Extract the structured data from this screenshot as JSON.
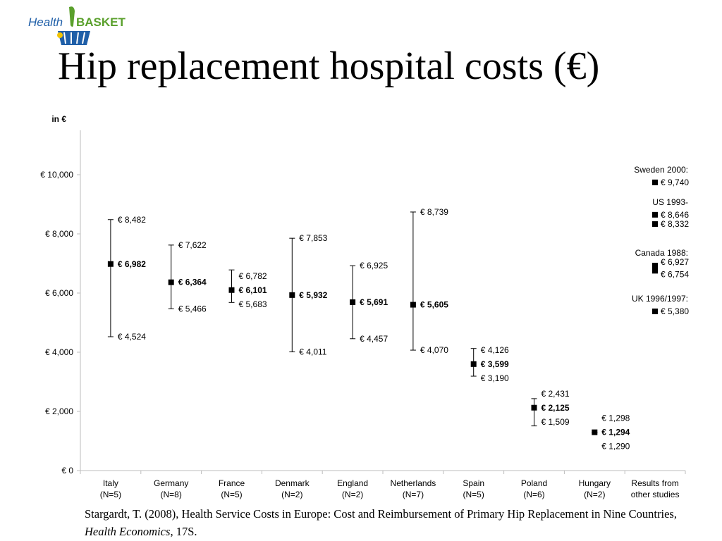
{
  "logo": {
    "text_left": "Health",
    "text_right": "BASKET",
    "colors": {
      "green": "#5aa02c",
      "blue": "#1f5fa8"
    }
  },
  "title": "Hip replacement hospital costs (€)",
  "citation": {
    "text_before": "Stargardt, T. (2008), Health Service Costs in Europe: Cost and Reimbursement of Primary Hip Replacement in Nine Countries, ",
    "journal": "Health Economics",
    "text_after": ", 17S."
  },
  "chart_data": {
    "type": "scatter",
    "ylabel": "in €",
    "ylim": [
      0,
      11500
    ],
    "y_ticks": [
      0,
      2000,
      4000,
      6000,
      8000,
      10000
    ],
    "y_tick_labels": [
      "€ 0",
      "€ 2,000",
      "€ 4,000",
      "€ 6,000",
      "€ 8,000",
      "€ 10,000"
    ],
    "grid": false,
    "categories": [
      {
        "name": "Italy",
        "n": "(N=5)",
        "mean": 6982,
        "max": 8482,
        "min": 4524,
        "mean_label": "€ 6,982",
        "max_label": "€ 8,482",
        "min_label": "€ 4,524"
      },
      {
        "name": "Germany",
        "n": "(N=8)",
        "mean": 6364,
        "max": 7622,
        "min": 5466,
        "mean_label": "€ 6,364",
        "max_label": "€ 7,622",
        "min_label": "€ 5,466"
      },
      {
        "name": "France",
        "n": "(N=5)",
        "mean": 6101,
        "max": 6782,
        "min": 5683,
        "mean_label": "€ 6,101",
        "max_label": "€ 6,782",
        "min_label": "€ 5,683"
      },
      {
        "name": "Denmark",
        "n": "(N=2)",
        "mean": 5932,
        "max": 7853,
        "min": 4011,
        "mean_label": "€ 5,932",
        "max_label": "€ 7,853",
        "min_label": "€ 4,011"
      },
      {
        "name": "England",
        "n": "(N=2)",
        "mean": 5691,
        "max": 6925,
        "min": 4457,
        "mean_label": "€ 5,691",
        "max_label": "€ 6,925",
        "min_label": "€ 4,457"
      },
      {
        "name": "Netherlands",
        "n": "(N=7)",
        "mean": 5605,
        "max": 8739,
        "min": 4070,
        "mean_label": "€ 5,605",
        "max_label": "€ 8,739",
        "min_label": "€ 4,070"
      },
      {
        "name": "Spain",
        "n": "(N=5)",
        "mean": 3599,
        "max": 4126,
        "min": 3190,
        "mean_label": "€ 3,599",
        "max_label": "€ 4,126",
        "min_label": "€ 3,190"
      },
      {
        "name": "Poland",
        "n": "(N=6)",
        "mean": 2125,
        "max": 2431,
        "min": 1509,
        "mean_label": "€ 2,125",
        "max_label": "€ 2,431",
        "min_label": "€ 1,509"
      },
      {
        "name": "Hungary",
        "n": "(N=2)",
        "mean": 1294,
        "max": 1298,
        "min": 1290,
        "mean_label": "€ 1,294",
        "max_label": "€ 1,298",
        "min_label": "€ 1,290"
      }
    ],
    "other_studies": {
      "name": "Results from",
      "name2": "other studies",
      "groups": [
        {
          "label": "Sweden 2000:",
          "points": [
            {
              "value": 9740,
              "label": "€ 9,740"
            }
          ]
        },
        {
          "label": "US 1993-",
          "points": [
            {
              "value": 8646,
              "label": "€ 8,646"
            },
            {
              "value": 8332,
              "label": "€ 8,332"
            }
          ]
        },
        {
          "label": "Canada 1988:",
          "points": [
            {
              "value": 6927,
              "label": "€ 6,927"
            },
            {
              "value": 6754,
              "label": "€ 6,754"
            }
          ]
        },
        {
          "label": "UK 1996/1997:",
          "points": [
            {
              "value": 5380,
              "label": "€ 5,380"
            }
          ]
        }
      ]
    }
  }
}
